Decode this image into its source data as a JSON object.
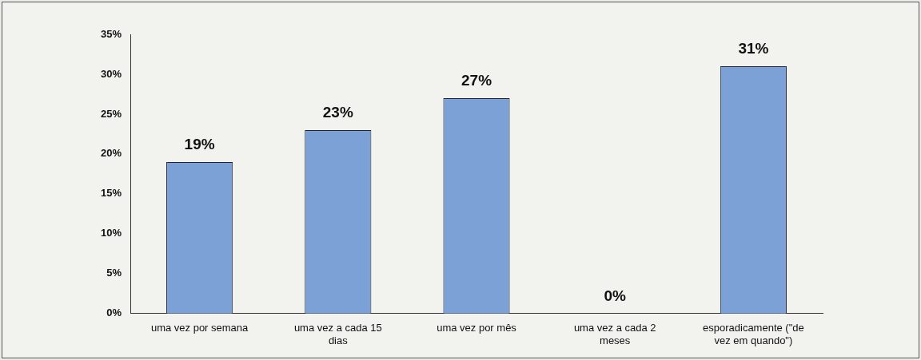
{
  "chart_data": {
    "type": "bar",
    "categories": [
      "uma vez por semana",
      "uma vez a cada 15 dias",
      "uma vez por mês",
      "uma vez a cada 2 meses",
      "esporadicamente (\"de vez em quando\")"
    ],
    "values": [
      19,
      23,
      27,
      0,
      31
    ],
    "color": "#7ba1d6",
    "ylim": [
      0,
      35
    ],
    "yticks": [
      {
        "value": 0,
        "label": "0%"
      },
      {
        "value": 5,
        "label": "5%"
      },
      {
        "value": 10,
        "label": "10%"
      },
      {
        "value": 15,
        "label": "15%"
      },
      {
        "value": 20,
        "label": "20%"
      },
      {
        "value": 25,
        "label": "25%"
      },
      {
        "value": 30,
        "label": "30%"
      },
      {
        "value": 35,
        "label": "35%"
      }
    ],
    "value_labels": [
      "19%",
      "23%",
      "27%",
      "0%",
      "31%"
    ],
    "grid": false,
    "legend": false
  }
}
